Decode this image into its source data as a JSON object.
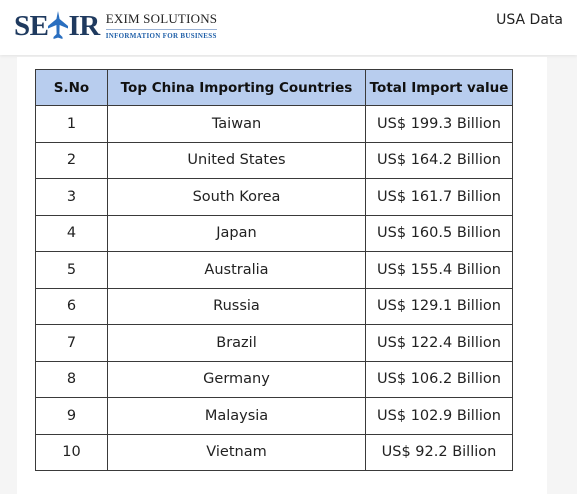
{
  "header": {
    "logo": {
      "brand": "SEAIR",
      "title": "EXIM SOLUTIONS",
      "subtitle": "INFORMATION FOR BUSINESS",
      "icon": "airplane-icon"
    },
    "region_link": "USA Data"
  },
  "table": {
    "columns": [
      "S.No",
      "Top China Importing Countries",
      "Total Import value"
    ],
    "header_color": "#b8cdee",
    "rows": [
      {
        "sno": "1",
        "country": "Taiwan",
        "value": "US$ 199.3 Billion"
      },
      {
        "sno": "2",
        "country": "United States",
        "value": "US$ 164.2 Billion"
      },
      {
        "sno": "3",
        "country": "South Korea",
        "value": "US$ 161.7 Billion"
      },
      {
        "sno": "4",
        "country": "Japan",
        "value": "US$ 160.5 Billion"
      },
      {
        "sno": "5",
        "country": "Australia",
        "value": "US$ 155.4 Billion"
      },
      {
        "sno": "6",
        "country": "Russia",
        "value": "US$ 129.1 Billion"
      },
      {
        "sno": "7",
        "country": "Brazil",
        "value": "US$ 122.4 Billion"
      },
      {
        "sno": "8",
        "country": "Germany",
        "value": "US$ 106.2 Billion"
      },
      {
        "sno": "9",
        "country": "Malaysia",
        "value": "US$ 102.9 Billion"
      },
      {
        "sno": "10",
        "country": "Vietnam",
        "value": "US$ 92.2 Billion"
      }
    ]
  }
}
